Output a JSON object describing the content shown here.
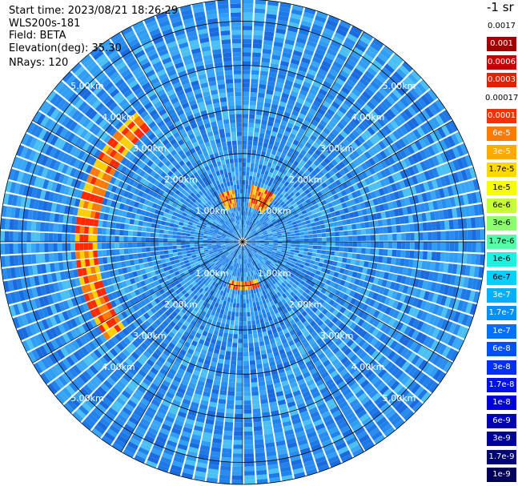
{
  "header": {
    "start_time": "Start time: 2023/08/21 18:26:29",
    "instrument": "WLS200s-181",
    "field": "Field: BETA",
    "elevation": "Elevation(deg): 35.30",
    "nrays": "NRays: 120"
  },
  "colorbar": {
    "title": "-1 sr",
    "ticks": [
      "0.0017",
      "0.001",
      "0.0006",
      "0.0003",
      "0.00017",
      "0.0001",
      "6e-5",
      "3e-5",
      "1.7e-5",
      "1e-5",
      "6e-6",
      "3e-6",
      "1.7e-6",
      "1e-6",
      "6e-7",
      "3e-7",
      "1.7e-7",
      "1e-7",
      "6e-8",
      "3e-8",
      "1.7e-8",
      "1e-8",
      "6e-9",
      "3e-9",
      "1.7e-9",
      "1e-9"
    ],
    "colors": [
      "#ffffff",
      "#a00000",
      "#c80000",
      "#e02000",
      "#ffffff",
      "#ff3000",
      "#ff7a00",
      "#ffaa00",
      "#ffd800",
      "#f5ff00",
      "#c8ff30",
      "#8cff6c",
      "#50ffa8",
      "#20f0e0",
      "#00d0ff",
      "#00b0ff",
      "#0090ff",
      "#0070ff",
      "#0050ff",
      "#0030ff",
      "#0010f0",
      "#0000d8",
      "#0000b8",
      "#000098",
      "#000078",
      "#000058"
    ]
  },
  "chart_data": {
    "type": "heatmap",
    "projection": "polar",
    "ring_labels": [
      "1.00km",
      "2.00km",
      "3.00km",
      "4.00km",
      "5.00km"
    ],
    "ring_radii_km": [
      1,
      2,
      3,
      4,
      5
    ],
    "max_range_km": 5.5,
    "nrays": 120,
    "gates": 55,
    "seed": 181,
    "background_palette": [
      "#1e78e6",
      "#2a8cf0",
      "#3aa6f6",
      "#2f9ef4",
      "#2282ec",
      "#4ac0f4",
      "#1a6ae0"
    ],
    "features": [
      {
        "name": "arc",
        "az_start_deg": -126,
        "az_end_deg": -40,
        "r_start_km": 3.3,
        "r_end_km": 3.7,
        "colors": [
          "#ff2a00",
          "#ff7a00",
          "#ffd000"
        ]
      },
      {
        "name": "near-north-left",
        "az_start_deg": -28,
        "az_end_deg": -8,
        "r_start_km": 0.8,
        "r_end_km": 1.1,
        "colors": [
          "#ff2a00",
          "#ffd000",
          "#ff7a00"
        ]
      },
      {
        "name": "near-north-right",
        "az_start_deg": 10,
        "az_end_deg": 35,
        "r_start_km": 0.8,
        "r_end_km": 1.2,
        "colors": [
          "#ff2a00",
          "#ffd000",
          "#ff7a00"
        ]
      },
      {
        "name": "near-south",
        "az_start_deg": 160,
        "az_end_deg": 198,
        "r_start_km": 0.85,
        "r_end_km": 1.05,
        "colors": [
          "#ff2a00",
          "#ff7a00",
          "#ffd000"
        ]
      }
    ],
    "spoke_count": 12
  }
}
